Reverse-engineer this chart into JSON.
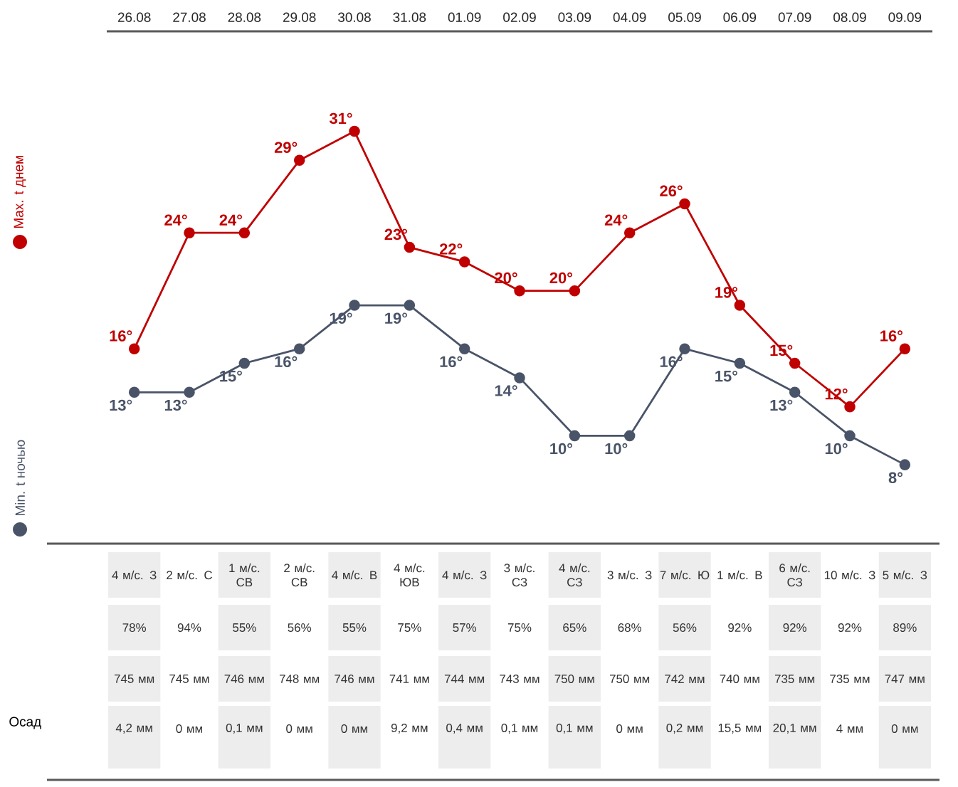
{
  "chart_data": [
    {
      "type": "line",
      "categories": [
        "26.08",
        "27.08",
        "28.08",
        "29.08",
        "30.08",
        "31.08",
        "01.09",
        "02.09",
        "03.09",
        "04.09",
        "05.09",
        "06.09",
        "07.09",
        "08.09",
        "09.09"
      ],
      "legend": "left",
      "marker": "circle",
      "series": [
        {
          "name": "Max. t днем",
          "color": "#c00000",
          "values": [
            16,
            24,
            24,
            29,
            31,
            23,
            22,
            20,
            20,
            24,
            26,
            19,
            15,
            12,
            16
          ],
          "value_labels": [
            "16°",
            "24°",
            "24°",
            "29°",
            "31°",
            "23°",
            "22°",
            "20°",
            "20°",
            "24°",
            "26°",
            "19°",
            "15°",
            "12°",
            "16°"
          ]
        },
        {
          "name": "Min. t ночью",
          "color": "#4a5468",
          "values": [
            13,
            13,
            15,
            16,
            19,
            19,
            16,
            14,
            10,
            10,
            16,
            15,
            13,
            10,
            8
          ],
          "value_labels": [
            "13°",
            "13°",
            "15°",
            "16°",
            "19°",
            "19°",
            "16°",
            "14°",
            "10°",
            "10°",
            "16°",
            "15°",
            "13°",
            "10°",
            "8°"
          ]
        }
      ]
    },
    {
      "type": "other",
      "y_categories": [
        null,
        null,
        null,
        "Осад"
      ],
      "cell_labels": [
        [
          "4 м/с. З",
          "2 м/с. С",
          "1 м/с. СВ",
          "2 м/с. СВ",
          "4 м/с. В",
          "4 м/с. ЮВ",
          "4 м/с. З",
          "3 м/с. СЗ",
          "4 м/с. СЗ",
          "3 м/с. З",
          "7 м/с. Ю",
          "1 м/с. В",
          "6 м/с. СЗ",
          "10 м/с. З",
          "5 м/с. З"
        ],
        [
          "78%",
          "94%",
          "55%",
          "56%",
          "55%",
          "75%",
          "57%",
          "75%",
          "65%",
          "68%",
          "56%",
          "92%",
          "92%",
          "92%",
          "89%"
        ],
        [
          "745 мм",
          "745 мм",
          "746 мм",
          "748 мм",
          "746 мм",
          "741 мм",
          "744 мм",
          "743 мм",
          "750 мм",
          "750 мм",
          "742 мм",
          "740 мм",
          "735 мм",
          "735 мм",
          "747 мм"
        ],
        [
          "4,2 мм",
          "0 мм",
          "0,1 мм",
          "0 мм",
          "0 мм",
          "9,2 мм",
          "0,4 мм",
          "0,1 мм",
          "0,1 мм",
          "0 мм",
          "0,2 мм",
          "15,5 мм",
          "20,1 мм",
          "4 мм",
          "0 мм"
        ]
      ]
    }
  ]
}
